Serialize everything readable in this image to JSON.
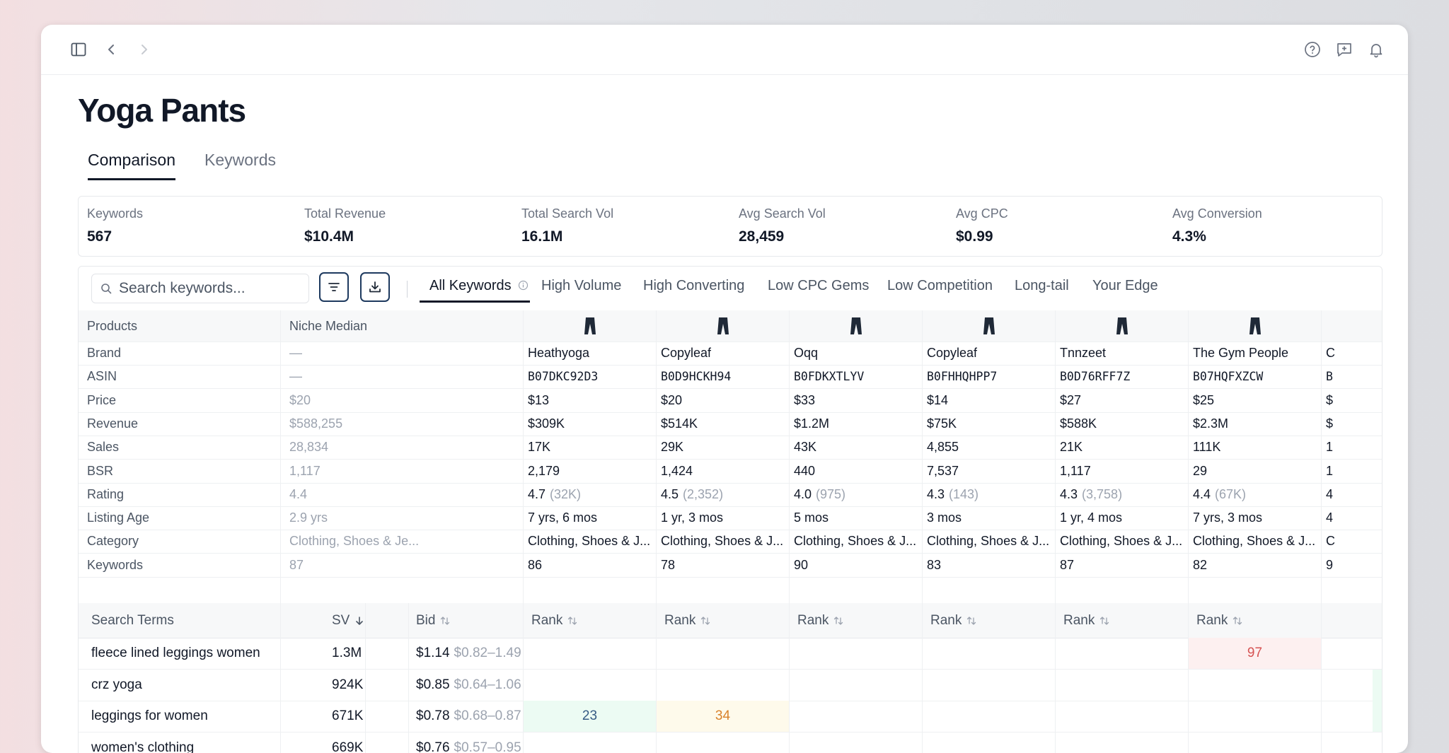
{
  "page": {
    "title": "Yoga Pants"
  },
  "tabs": [
    "Comparison",
    "Keywords"
  ],
  "stats": [
    {
      "label": "Keywords",
      "value": "567"
    },
    {
      "label": "Total Revenue",
      "value": "$10.4M"
    },
    {
      "label": "Total Search Vol",
      "value": "16.1M"
    },
    {
      "label": "Avg Search Vol",
      "value": "28,459"
    },
    {
      "label": "Avg CPC",
      "value": "$0.99"
    },
    {
      "label": "Avg Conversion",
      "value": "4.3%"
    }
  ],
  "toolbar": {
    "search_placeholder": "Search keywords...",
    "filter_tabs": [
      "All Keywords",
      "High Volume",
      "High Converting",
      "Low CPC Gems",
      "Low Competition",
      "Long-tail",
      "Your Edge"
    ]
  },
  "grid": {
    "products_label": "Products",
    "median_header": "Niche Median",
    "rows": [
      {
        "label": "Brand",
        "median": "—",
        "values": [
          "Heathyoga",
          "Copyleaf",
          "Oqq",
          "Copyleaf",
          "Tnnzeet",
          "The Gym People",
          "C"
        ]
      },
      {
        "label": "ASIN",
        "median": "—",
        "values": [
          "B07DKC92D3",
          "B0D9HCKH94",
          "B0FDKXTLYV",
          "B0FHHQHPP7",
          "B0D76RFF7Z",
          "B07HQFXZCW",
          "B"
        ]
      },
      {
        "label": "Price",
        "median": "$20",
        "values": [
          "$13",
          "$20",
          "$33",
          "$14",
          "$27",
          "$25",
          "$"
        ]
      },
      {
        "label": "Revenue",
        "median": "$588,255",
        "values": [
          "$309K",
          "$514K",
          "$1.2M",
          "$75K",
          "$588K",
          "$2.3M",
          "$"
        ]
      },
      {
        "label": "Sales",
        "median": "28,834",
        "values": [
          "17K",
          "29K",
          "43K",
          "4,855",
          "21K",
          "111K",
          "1"
        ]
      },
      {
        "label": "BSR",
        "median": "1,117",
        "values": [
          "2,179",
          "1,424",
          "440",
          "7,537",
          "1,117",
          "29",
          "1"
        ]
      },
      {
        "label": "Rating",
        "median": "4.4",
        "values": [
          "4.7",
          "4.5",
          "4.0",
          "4.3",
          "4.3",
          "4.4",
          "4"
        ],
        "counts": [
          "(32K)",
          "(2,352)",
          "(975)",
          "(143)",
          "(3,758)",
          "(67K)",
          ""
        ]
      },
      {
        "label": "Listing Age",
        "median": "2.9 yrs",
        "values": [
          "7 yrs, 6 mos",
          "1 yr, 3 mos",
          "5 mos",
          "3 mos",
          "1 yr, 4 mos",
          "7 yrs, 3 mos",
          "4"
        ]
      },
      {
        "label": "Category",
        "median": "Clothing, Shoes & Je...",
        "values": [
          "Clothing, Shoes & J...",
          "Clothing, Shoes & J...",
          "Clothing, Shoes & J...",
          "Clothing, Shoes & J...",
          "Clothing, Shoes & J...",
          "Clothing, Shoes & J...",
          "C"
        ]
      },
      {
        "label": "Keywords",
        "median": "87",
        "values": [
          "86",
          "78",
          "90",
          "83",
          "87",
          "82",
          "9"
        ]
      }
    ]
  },
  "search_terms": {
    "headers": {
      "term": "Search Terms",
      "sv": "SV",
      "bid": "Bid",
      "rank": "Rank"
    },
    "rows": [
      {
        "term": "fleece lined leggings women",
        "sv": "1.3M",
        "bid": "$1.14",
        "range": "$0.82–1.49",
        "ranks": [
          "",
          "",
          "",
          "",
          "",
          "97"
        ]
      },
      {
        "term": "crz yoga",
        "sv": "924K",
        "bid": "$0.85",
        "range": "$0.64–1.06",
        "ranks": [
          "",
          "",
          "",
          "",
          "",
          ""
        ]
      },
      {
        "term": "leggings for women",
        "sv": "671K",
        "bid": "$0.78",
        "range": "$0.68–0.87",
        "ranks": [
          "23",
          "34",
          "",
          "",
          "",
          ""
        ]
      },
      {
        "term": "women's clothing",
        "sv": "669K",
        "bid": "$0.76",
        "range": "$0.57–0.95",
        "ranks": [
          "",
          "",
          "",
          "",
          "",
          ""
        ]
      }
    ]
  },
  "colors": {
    "rank_good_bg": "#ecfbf3",
    "rank_good_text": "#365b84",
    "rank_mid_bg": "#fefaeb",
    "rank_mid_text": "#d9822b",
    "rank_bad_bg": "#fdf0f0",
    "rank_bad_text": "#d65353"
  }
}
